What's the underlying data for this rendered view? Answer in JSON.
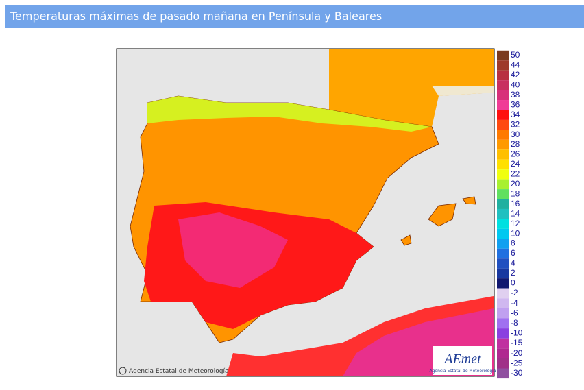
{
  "header": {
    "title": "Temperaturas máximas de pasado mañana en Península y Baleares"
  },
  "credit": "Agencia Estatal de Meteorología",
  "logo": {
    "name": "AEmet",
    "subtitle": "Agencia Estatal de Meteorología"
  },
  "legend": {
    "items": [
      {
        "label": 50,
        "color": "#7a3a1e"
      },
      {
        "label": 44,
        "color": "#9e3a2a"
      },
      {
        "label": 42,
        "color": "#b83040"
      },
      {
        "label": 40,
        "color": "#c83060"
      },
      {
        "label": 38,
        "color": "#d8307a"
      },
      {
        "label": 36,
        "color": "#f03c96"
      },
      {
        "label": 34,
        "color": "#ff1010"
      },
      {
        "label": 32,
        "color": "#ff4a10"
      },
      {
        "label": 30,
        "color": "#ff7a00"
      },
      {
        "label": 28,
        "color": "#ff9a00"
      },
      {
        "label": 26,
        "color": "#ffbf00"
      },
      {
        "label": 24,
        "color": "#ffe000"
      },
      {
        "label": 22,
        "color": "#f0ff10"
      },
      {
        "label": 20,
        "color": "#a8f030"
      },
      {
        "label": 18,
        "color": "#60e060"
      },
      {
        "label": 16,
        "color": "#20b0a0"
      },
      {
        "label": 14,
        "color": "#20c0c0"
      },
      {
        "label": 12,
        "color": "#00e0e0"
      },
      {
        "label": 10,
        "color": "#00c8f0"
      },
      {
        "label": 8,
        "color": "#10a0f0"
      },
      {
        "label": 6,
        "color": "#2070e0"
      },
      {
        "label": 4,
        "color": "#2050c0"
      },
      {
        "label": 2,
        "color": "#1838a0"
      },
      {
        "label": 0,
        "color": "#101870"
      },
      {
        "label": -2,
        "color": "#e0d0f0"
      },
      {
        "label": -4,
        "color": "#d0b8f0"
      },
      {
        "label": -6,
        "color": "#c0a0f0"
      },
      {
        "label": -8,
        "color": "#a070f0"
      },
      {
        "label": -10,
        "color": "#8a40e0"
      },
      {
        "label": -15,
        "color": "#c030a0"
      },
      {
        "label": -20,
        "color": "#b02890"
      },
      {
        "label": -25,
        "color": "#a03088"
      },
      {
        "label": -30,
        "color": "#9050a0"
      }
    ]
  }
}
